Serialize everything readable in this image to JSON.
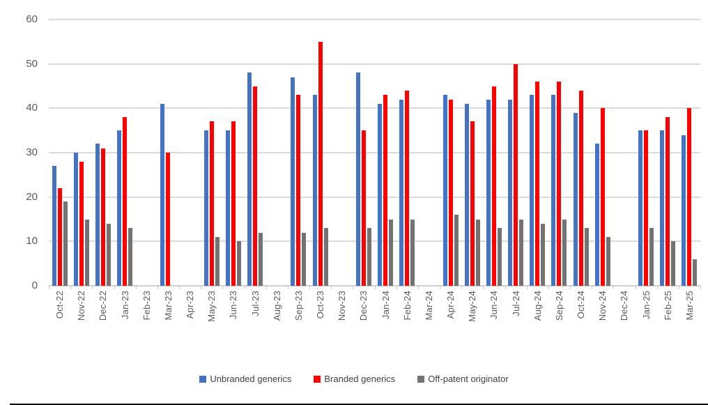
{
  "chart_data": {
    "type": "bar",
    "title": "",
    "xlabel": "",
    "ylabel": "",
    "ylim": [
      0,
      60
    ],
    "yticks": [
      0,
      10,
      20,
      30,
      40,
      50,
      60
    ],
    "grid": true,
    "legend_position": "bottom",
    "categories": [
      "Oct-22",
      "Nov-22",
      "Dec-22",
      "Jan-23",
      "Feb-23",
      "Mar-23",
      "Apr-23",
      "May-23",
      "Jun-23",
      "Jul-23",
      "Aug-23",
      "Sep-23",
      "Oct-23",
      "Nov-23",
      "Dec-23",
      "Jan-24",
      "Feb-24",
      "Mar-24",
      "Apr-24",
      "May-24",
      "Jun-24",
      "Jul-24",
      "Aug-24",
      "Sep-24",
      "Oct-24",
      "Nov-24",
      "Dec-24",
      "Jan-25",
      "Feb-25",
      "Mar-25"
    ],
    "series": [
      {
        "name": "Unbranded generics",
        "color": "#4472C4",
        "values": [
          27,
          30,
          32,
          35,
          null,
          41,
          null,
          35,
          35,
          48,
          null,
          47,
          43,
          null,
          48,
          41,
          42,
          null,
          43,
          41,
          42,
          42,
          43,
          43,
          39,
          32,
          null,
          35,
          35,
          34
        ]
      },
      {
        "name": "Branded generics",
        "color": "#FF0000",
        "values": [
          22,
          28,
          31,
          38,
          null,
          30,
          null,
          37,
          37,
          45,
          null,
          43,
          55,
          null,
          35,
          43,
          44,
          null,
          42,
          37,
          45,
          50,
          46,
          46,
          44,
          40,
          null,
          35,
          38,
          40
        ]
      },
      {
        "name": "Off-patent originator",
        "color": "#737373",
        "values": [
          19,
          15,
          14,
          13,
          null,
          null,
          null,
          11,
          10,
          12,
          null,
          12,
          13,
          null,
          13,
          15,
          15,
          null,
          16,
          15,
          13,
          15,
          14,
          15,
          13,
          11,
          null,
          13,
          10,
          6
        ]
      }
    ],
    "axis_text_color": "#595959",
    "gridline_color": "#D9D9D9",
    "background_color": "#FFFFFF"
  }
}
